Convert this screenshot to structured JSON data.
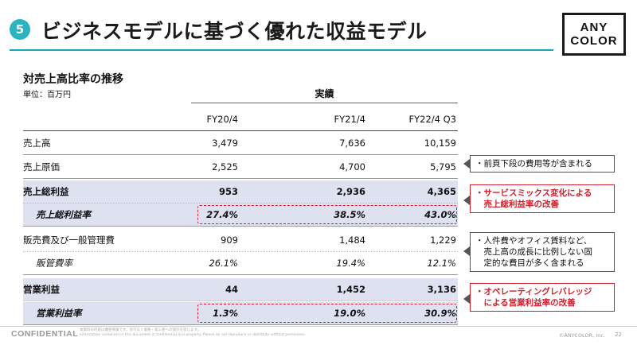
{
  "header": {
    "section_number": "5",
    "title": "ビジネスモデルに基づく優れた収益モデル",
    "logo_line1": "ANY",
    "logo_line2": "COLOR"
  },
  "table": {
    "section_title": "対売上高比率の推移",
    "unit_label": "単位：百万円",
    "group_header": "実績",
    "columns": [
      "FY20/4",
      "FY21/4",
      "FY22/4  Q3"
    ],
    "rows": [
      {
        "label": "売上高",
        "values": [
          "3,479",
          "7,636",
          "10,159"
        ]
      },
      {
        "label": "売上原価",
        "values": [
          "2,525",
          "4,700",
          "5,795"
        ]
      },
      {
        "label": "売上総利益",
        "values": [
          "953",
          "2,936",
          "4,365"
        ]
      },
      {
        "label": "売上総利益率",
        "values": [
          "27.4%",
          "38.5%",
          "43.0%"
        ]
      },
      {
        "label": "販売費及び一般管理費",
        "values": [
          "909",
          "1,484",
          "1,229"
        ]
      },
      {
        "label": "販管費率",
        "values": [
          "26.1%",
          "19.4%",
          "12.1%"
        ]
      },
      {
        "label": "営業利益",
        "values": [
          "44",
          "1,452",
          "3,136"
        ]
      },
      {
        "label": "営業利益率",
        "values": [
          "1.3%",
          "19.0%",
          "30.9%"
        ]
      }
    ]
  },
  "notes": [
    {
      "lines": [
        "・前頁下段の費用等が含まれる"
      ]
    },
    {
      "lines": [
        "・サービスミックス変化による",
        "　売上総利益率の改善"
      ]
    },
    {
      "lines": [
        "・人件費やオフィス賃料など、",
        "　売上高の成長に比例しない固",
        "　定的な費目が多く含まれる"
      ]
    },
    {
      "lines": [
        "・オペレーティングレバレッジ",
        "　による営業利益率の改善"
      ]
    }
  ],
  "footer": {
    "confidential": "CONFIDENTIAL",
    "disclaimer_line1": "本資料の内容は機密情報です。許可なく複製・第三者への開示を禁じます。",
    "disclaimer_line2": "Information contained in this document is confidential and property. Please do not reproduce or distribute without permission.",
    "copyright": "©ANYCOLOR, Inc.",
    "page_number": "22"
  },
  "colors": {
    "accent_teal": "#1aa7b8",
    "highlight_red": "#d0202c",
    "row_shade": "#dee1f0"
  }
}
